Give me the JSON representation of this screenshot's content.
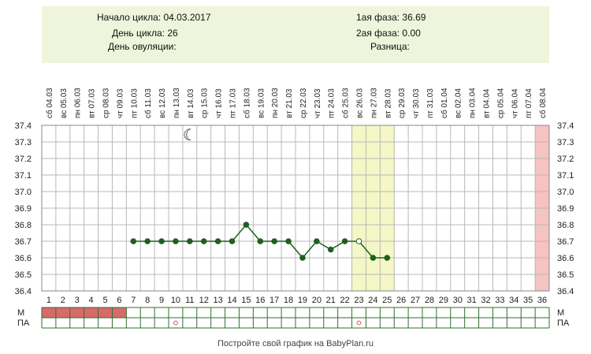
{
  "info": {
    "cycle_start": "Начало цикла: 04.03.2017",
    "cycle_day": "День цикла: 26",
    "ovulation_day": "День овуляции:",
    "phase1": "1ая фаза: 36.69",
    "phase2": "2ая фаза: 0.00",
    "difference": "Разница:"
  },
  "footer": "Постройте свой график на BabyPlan.ru",
  "colors": {
    "line": "#1f5f1f",
    "grid": "#b8b8b8",
    "border": "#2f6f2f",
    "highlight": "#f4f7c6",
    "last_day": "#f6c2c2",
    "menses": "#d96a6a",
    "marker_red": "#e05050",
    "info_bg": "#eef5dc"
  },
  "chart_data": {
    "type": "line",
    "title": "",
    "xlabel": "",
    "ylabel": "",
    "ylim": [
      36.4,
      37.4
    ],
    "y_ticks": [
      "37.4",
      "37.3",
      "37.2",
      "37.1",
      "37.0",
      "36.9",
      "36.8",
      "36.7",
      "36.6",
      "36.5",
      "36.4"
    ],
    "days": [
      "1",
      "2",
      "3",
      "4",
      "5",
      "6",
      "7",
      "8",
      "9",
      "10",
      "11",
      "12",
      "13",
      "14",
      "15",
      "16",
      "17",
      "18",
      "19",
      "20",
      "21",
      "22",
      "23",
      "24",
      "25",
      "26",
      "27",
      "28",
      "29",
      "30",
      "31",
      "32",
      "33",
      "34",
      "35",
      "36"
    ],
    "dates": [
      "сб 04.03",
      "вс 05.03",
      "пн 06.03",
      "вт 07.03",
      "ср 08.03",
      "чт 09.03",
      "пт 10.03",
      "сб 11.03",
      "вс 12.03",
      "пн 13.03",
      "вт 14.03",
      "ср 15.03",
      "чт 16.03",
      "пт 17.03",
      "сб 18.03",
      "вс 19.03",
      "пн 20.03",
      "вт 21.03",
      "ср 22.03",
      "чт 23.03",
      "пт 24.03",
      "сб 25.03",
      "вс 26.03",
      "пн 27.03",
      "вт 28.03",
      "ср 29.03",
      "чт 30.03",
      "пт 31.03",
      "сб 01.04",
      "вс 02.04",
      "пн 03.04",
      "вт 04.04",
      "ср 05.04",
      "чт 06.04",
      "пт 07.04",
      "сб 08.04"
    ],
    "series": [
      {
        "values": [
          null,
          null,
          null,
          null,
          null,
          null,
          36.7,
          36.7,
          36.7,
          36.7,
          36.7,
          36.7,
          36.7,
          36.7,
          36.8,
          36.7,
          36.7,
          36.7,
          36.6,
          36.7,
          36.65,
          36.7,
          36.7,
          36.6,
          36.6,
          null,
          null,
          null,
          null,
          null,
          null,
          null,
          null,
          null,
          null,
          null
        ],
        "open_marker_days": [
          23
        ]
      }
    ],
    "highlight_days": [
      23,
      25
    ],
    "last_day_highlight": 36,
    "moon_day": 11,
    "moon_glyph": "☾",
    "row_labels": {
      "m": "М",
      "pa": "ПА"
    },
    "menses_days": [
      1,
      6
    ],
    "pa_marker_days": [
      10,
      23
    ],
    "pa_marker_glyph": "o",
    "grid": true
  }
}
